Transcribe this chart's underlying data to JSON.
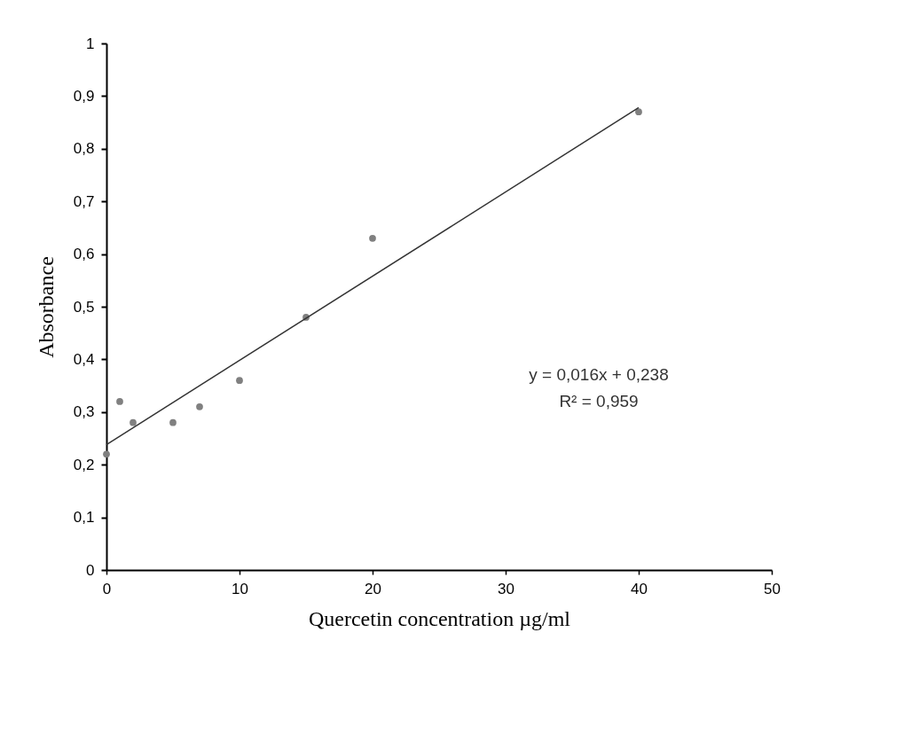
{
  "chart_data": {
    "type": "scatter",
    "xlabel": "Quercetin concentration µg/ml",
    "ylabel": "Absorbance",
    "series": [
      {
        "color": "#808080",
        "marker": "circle",
        "x": [
          0,
          1,
          2,
          5,
          7,
          10,
          15,
          20,
          40
        ],
        "values": [
          0.22,
          0.32,
          0.28,
          0.28,
          0.31,
          0.36,
          0.48,
          0.63,
          0.87
        ]
      },
      {
        "type": "line",
        "color": "#333333",
        "marker": "none",
        "x": [
          0,
          40
        ],
        "values": [
          0.238,
          0.878
        ]
      }
    ],
    "annotations": [
      "y = 0,016x + 0,238",
      "R² = 0,959"
    ],
    "xlim": [
      0,
      50
    ],
    "xticks": [
      0,
      10,
      20,
      30,
      40,
      50
    ],
    "ylim": [
      0,
      1
    ],
    "yticks": [
      0,
      {
        "value": 0.1,
        "label": "0,1"
      },
      {
        "value": 0.2,
        "label": "0,2"
      },
      {
        "value": 0.3,
        "label": "0,3"
      },
      {
        "value": 0.4,
        "label": "0,4"
      },
      {
        "value": 0.5,
        "label": "0,5"
      },
      {
        "value": 0.6,
        "label": "0,6"
      },
      {
        "value": 0.7,
        "label": "0,7"
      },
      {
        "value": 0.8,
        "label": "0,8"
      },
      {
        "value": 0.9,
        "label": "0,9"
      },
      1
    ],
    "grid": false,
    "line_style": "solid"
  }
}
